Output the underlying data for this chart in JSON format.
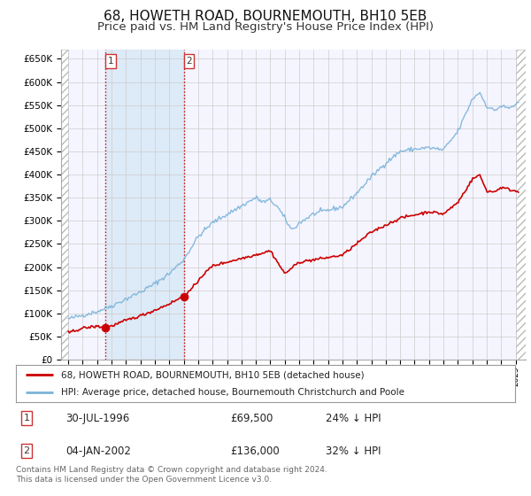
{
  "title": "68, HOWETH ROAD, BOURNEMOUTH, BH10 5EB",
  "subtitle": "Price paid vs. HM Land Registry's House Price Index (HPI)",
  "title_fontsize": 11,
  "subtitle_fontsize": 9.5,
  "hpi_color": "#7ab3d9",
  "price_color": "#cc0000",
  "bg_color": "#ffffff",
  "plot_bg_color": "#f5f5ff",
  "grid_color": "#cccccc",
  "purchase1_date": 1996.58,
  "purchase1_price": 69500,
  "purchase2_date": 2002.01,
  "purchase2_price": 136000,
  "shade1_start": 1996.58,
  "shade1_end": 2002.01,
  "ylim": [
    0,
    670000
  ],
  "xlim": [
    1993.5,
    2025.7
  ],
  "ytick_step": 50000,
  "legend_line1": "68, HOWETH ROAD, BOURNEMOUTH, BH10 5EB (detached house)",
  "legend_line2": "HPI: Average price, detached house, Bournemouth Christchurch and Poole",
  "annotation1_label": "1",
  "annotation1_date": "30-JUL-1996",
  "annotation1_price": "£69,500",
  "annotation1_hpi": "24% ↓ HPI",
  "annotation2_label": "2",
  "annotation2_date": "04-JAN-2002",
  "annotation2_price": "£136,000",
  "annotation2_hpi": "32% ↓ HPI",
  "footer": "Contains HM Land Registry data © Crown copyright and database right 2024.\nThis data is licensed under the Open Government Licence v3.0."
}
